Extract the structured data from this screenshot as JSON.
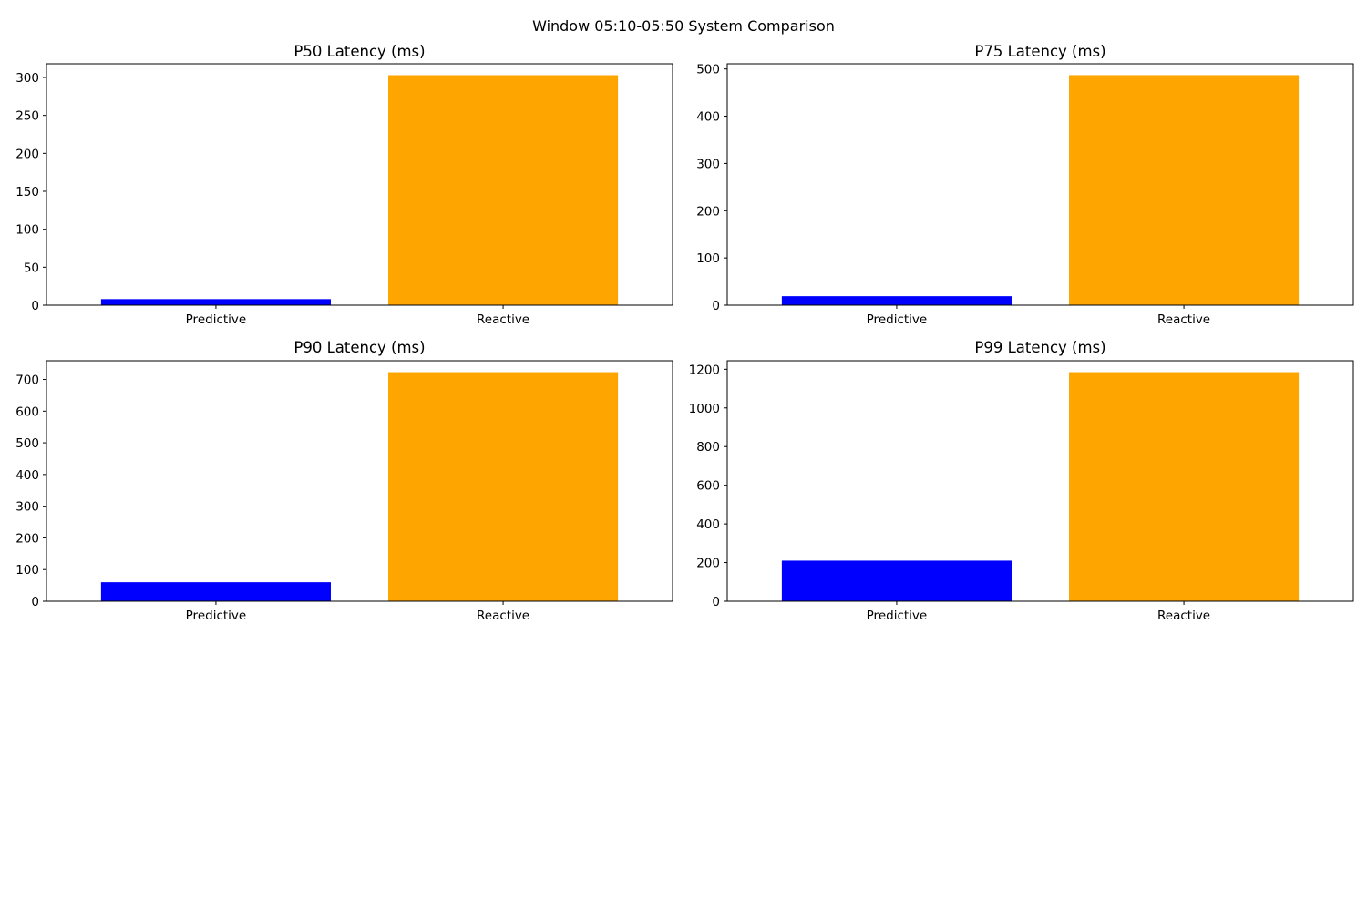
{
  "figure": {
    "title": "Window 05:10-05:50 System Comparison",
    "colors": {
      "Predictive": "#0000ff",
      "Reactive": "#ffa500"
    }
  },
  "chart_data": [
    {
      "type": "bar",
      "title": "P50 Latency (ms)",
      "categories": [
        "Predictive",
        "Reactive"
      ],
      "values": [
        8,
        303
      ],
      "ylim": [
        0,
        318
      ],
      "yticks": [
        0,
        50,
        100,
        150,
        200,
        250,
        300
      ],
      "grid": false
    },
    {
      "type": "bar",
      "title": "P75 Latency (ms)",
      "categories": [
        "Predictive",
        "Reactive"
      ],
      "values": [
        19,
        487
      ],
      "ylim": [
        0,
        511
      ],
      "yticks": [
        0,
        100,
        200,
        300,
        400,
        500
      ],
      "grid": false
    },
    {
      "type": "bar",
      "title": "P90 Latency (ms)",
      "categories": [
        "Predictive",
        "Reactive"
      ],
      "values": [
        60,
        723
      ],
      "ylim": [
        0,
        759
      ],
      "yticks": [
        0,
        100,
        200,
        300,
        400,
        500,
        600,
        700
      ],
      "grid": false
    },
    {
      "type": "bar",
      "title": "P99 Latency (ms)",
      "categories": [
        "Predictive",
        "Reactive"
      ],
      "values": [
        210,
        1185
      ],
      "ylim": [
        0,
        1244
      ],
      "yticks": [
        0,
        200,
        400,
        600,
        800,
        1000,
        1200
      ],
      "grid": false
    }
  ]
}
